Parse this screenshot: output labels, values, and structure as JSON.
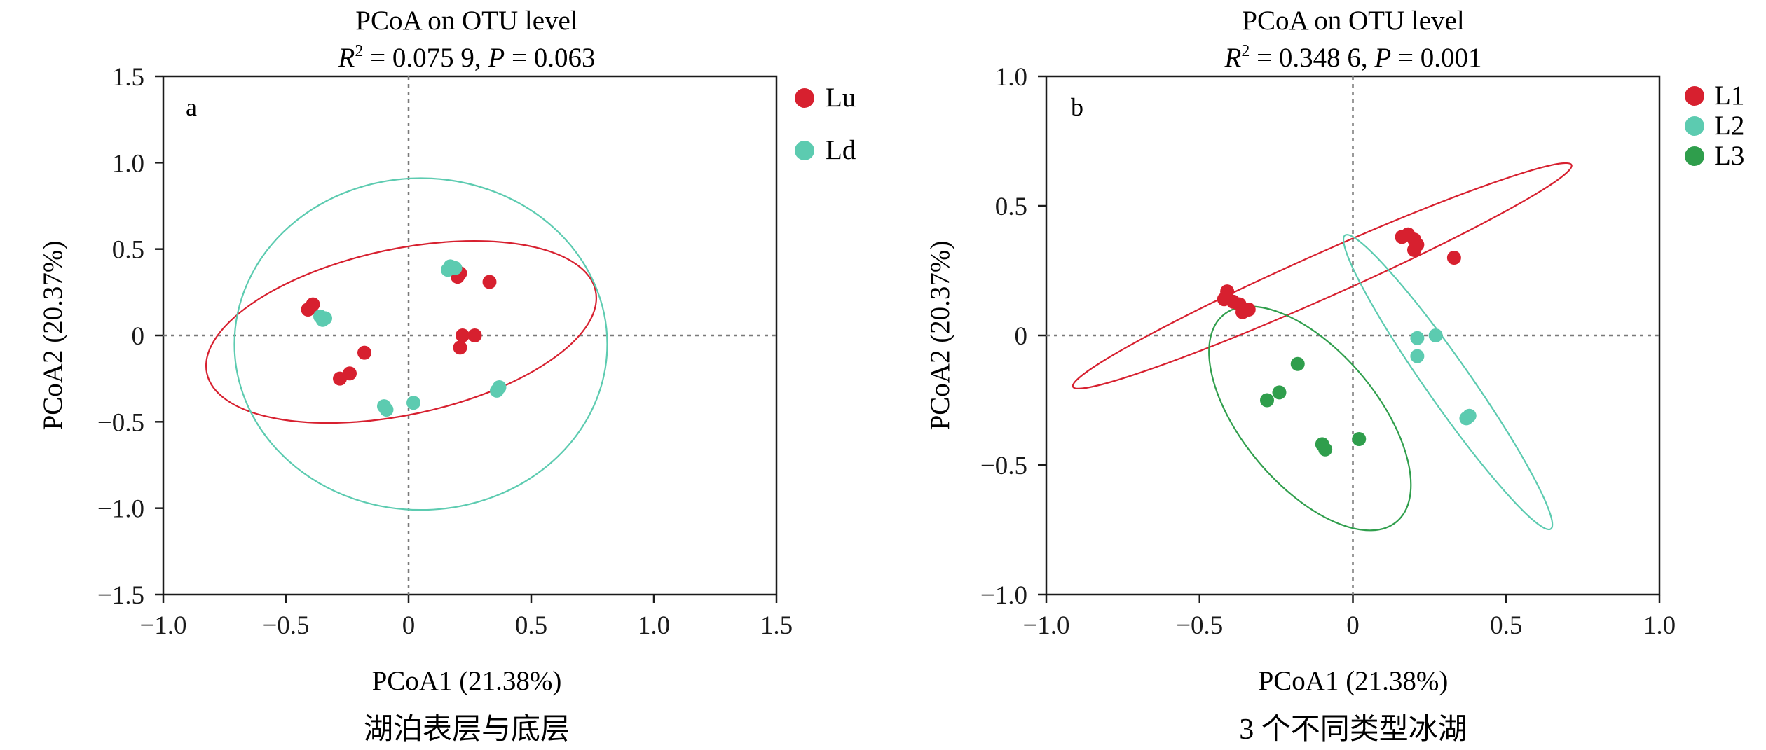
{
  "colors": {
    "red": "#d7202f",
    "teal": "#5ccbb0",
    "green": "#2f9e4c",
    "axis": "#1a1a1a",
    "ref_line": "#7a7a7a"
  },
  "chart_data": [
    {
      "type": "scatter",
      "panel_label": "a",
      "title": "PCoA on OTU level",
      "stats": {
        "r2_label": "R",
        "r2_sup": "2",
        "r2_value": " = 0.075 9, ",
        "p_label": "P",
        "p_value": " = 0.063"
      },
      "xlabel": "PCoA1 (21.38%)",
      "ylabel": "PCoA2 (20.37%)",
      "caption": "湖泊表层与底层",
      "xlim": [
        -1.0,
        1.5
      ],
      "ylim": [
        -1.5,
        1.5
      ],
      "x_ticks": [
        -1.0,
        -0.5,
        0,
        0.5,
        1.0,
        1.5
      ],
      "x_tick_labels": [
        "−1.0",
        "−0.5",
        "0",
        "0.5",
        "1.0",
        "1.5"
      ],
      "y_ticks": [
        1.5,
        1.0,
        0.5,
        0,
        -0.5,
        -1.0,
        -1.5
      ],
      "y_tick_labels": [
        "1.5",
        "1.0",
        "0.5",
        "0",
        "−0.5",
        "−1.0",
        "−1.5"
      ],
      "legend_position": "right-top",
      "series": [
        {
          "name": "Lu",
          "color": "#d7202f",
          "points": [
            [
              -0.41,
              0.15
            ],
            [
              -0.4,
              0.16
            ],
            [
              -0.39,
              0.18
            ],
            [
              0.2,
              0.34
            ],
            [
              0.21,
              0.36
            ],
            [
              0.33,
              0.31
            ],
            [
              0.22,
              0.0
            ],
            [
              0.27,
              0.0
            ],
            [
              0.21,
              -0.07
            ],
            [
              -0.18,
              -0.1
            ],
            [
              -0.24,
              -0.22
            ],
            [
              -0.28,
              -0.25
            ]
          ],
          "ellipse": {
            "cx": -0.03,
            "cy": 0.02,
            "rx": 0.81,
            "ry": 0.48,
            "angle_deg": 12
          }
        },
        {
          "name": "Ld",
          "color": "#5ccbb0",
          "points": [
            [
              -0.36,
              0.11
            ],
            [
              -0.35,
              0.09
            ],
            [
              -0.34,
              0.1
            ],
            [
              0.16,
              0.38
            ],
            [
              0.19,
              0.39
            ],
            [
              0.17,
              0.4
            ],
            [
              -0.1,
              -0.41
            ],
            [
              -0.09,
              -0.43
            ],
            [
              0.02,
              -0.39
            ],
            [
              0.36,
              -0.32
            ],
            [
              0.37,
              -0.3
            ]
          ],
          "ellipse": {
            "cx": 0.05,
            "cy": -0.05,
            "rx": 0.76,
            "ry": 0.96,
            "angle_deg": 0
          }
        }
      ]
    },
    {
      "type": "scatter",
      "panel_label": "b",
      "title": "PCoA on OTU level",
      "stats": {
        "r2_label": "R",
        "r2_sup": "2",
        "r2_value": " = 0.348 6, ",
        "p_label": "P",
        "p_value": " = 0.001"
      },
      "xlabel": "PCoA1 (21.38%)",
      "ylabel": "PCoA2 (20.37%)",
      "caption": "3 个不同类型冰湖",
      "xlim": [
        -1.0,
        1.0
      ],
      "ylim": [
        -1.0,
        1.0
      ],
      "x_ticks": [
        -1.0,
        -0.5,
        0,
        0.5,
        1.0
      ],
      "x_tick_labels": [
        "−1.0",
        "−0.5",
        "0",
        "0.5",
        "1.0"
      ],
      "y_ticks": [
        1.0,
        0.5,
        0,
        -0.5,
        -1.0
      ],
      "y_tick_labels": [
        "1.0",
        "0.5",
        "0",
        "−0.5",
        "−1.0"
      ],
      "legend_position": "right-top",
      "series": [
        {
          "name": "L1",
          "color": "#d7202f",
          "points": [
            [
              -0.42,
              0.14
            ],
            [
              -0.41,
              0.17
            ],
            [
              -0.39,
              0.13
            ],
            [
              -0.37,
              0.12
            ],
            [
              -0.36,
              0.09
            ],
            [
              -0.34,
              0.1
            ],
            [
              0.16,
              0.38
            ],
            [
              0.18,
              0.39
            ],
            [
              0.2,
              0.37
            ],
            [
              0.2,
              0.33
            ],
            [
              0.21,
              0.35
            ],
            [
              0.33,
              0.3
            ]
          ],
          "ellipse": {
            "cx": -0.1,
            "cy": 0.23,
            "rx": 0.89,
            "ry": 0.085,
            "angle_deg": 24
          }
        },
        {
          "name": "L2",
          "color": "#5ccbb0",
          "points": [
            [
              0.21,
              -0.01
            ],
            [
              0.27,
              0.0
            ],
            [
              0.21,
              -0.08
            ],
            [
              0.37,
              -0.32
            ],
            [
              0.38,
              -0.31
            ]
          ],
          "ellipse": {
            "cx": 0.31,
            "cy": -0.18,
            "rx": 0.585,
            "ry": 0.085,
            "angle_deg": -55
          }
        },
        {
          "name": "L3",
          "color": "#2f9e4c",
          "points": [
            [
              -0.18,
              -0.11
            ],
            [
              -0.24,
              -0.22
            ],
            [
              -0.28,
              -0.25
            ],
            [
              -0.1,
              -0.42
            ],
            [
              -0.09,
              -0.44
            ],
            [
              0.02,
              -0.4
            ]
          ],
          "ellipse": {
            "cx": -0.14,
            "cy": -0.32,
            "rx": 0.44,
            "ry": 0.26,
            "angle_deg": -50
          }
        }
      ]
    }
  ]
}
